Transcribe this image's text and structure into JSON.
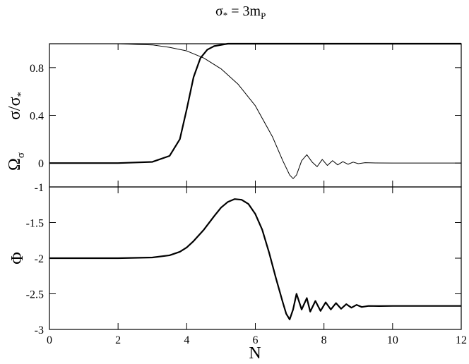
{
  "title": {
    "main": "σ",
    "main_sub": "*",
    "rhs": " = 3m",
    "rhs_sub": "P"
  },
  "chart_data": [
    {
      "type": "line",
      "panel": "top",
      "ylabel_upper": {
        "main": "σ/σ",
        "sub": "*"
      },
      "ylabel_lower": {
        "main": "Ω",
        "sub": "σ"
      },
      "xlim": [
        0,
        12
      ],
      "ylim": [
        -0.2,
        1.0
      ],
      "x_ticks": [
        0,
        2,
        4,
        6,
        8,
        10,
        12
      ],
      "y_ticks": [
        0,
        0.4,
        0.8
      ],
      "y_tick_labels": [
        "0",
        "0.4",
        "0.8"
      ],
      "grid": false,
      "series": [
        {
          "style": "thick",
          "x": [
            0,
            2,
            3,
            3.5,
            3.8,
            4.0,
            4.2,
            4.4,
            4.6,
            4.8,
            5.0,
            5.2,
            5.5,
            6,
            12
          ],
          "y": [
            0,
            0,
            0.01,
            0.06,
            0.2,
            0.45,
            0.72,
            0.88,
            0.95,
            0.98,
            0.99,
            1.0,
            1.0,
            1.0,
            1.0
          ]
        },
        {
          "style": "thin",
          "x": [
            0,
            1,
            2,
            3,
            3.5,
            4.0,
            4.5,
            5.0,
            5.5,
            6.0,
            6.5,
            6.8,
            7.0,
            7.1,
            7.2,
            7.35,
            7.5,
            7.65,
            7.8,
            7.95,
            8.1,
            8.25,
            8.4,
            8.55,
            8.7,
            8.85,
            9.0,
            9.2,
            9.5,
            10,
            12
          ],
          "y": [
            1.0,
            1.0,
            1.0,
            0.99,
            0.97,
            0.94,
            0.88,
            0.79,
            0.66,
            0.48,
            0.22,
            0.02,
            -0.1,
            -0.13,
            -0.1,
            0.02,
            0.07,
            0.01,
            -0.03,
            0.03,
            -0.02,
            0.02,
            -0.015,
            0.012,
            -0.01,
            0.008,
            -0.005,
            0.003,
            0.001,
            0,
            0
          ]
        }
      ]
    },
    {
      "type": "line",
      "panel": "bottom",
      "ylabel": "Φ",
      "xlabel": "N",
      "xlim": [
        0,
        12
      ],
      "ylim": [
        -3,
        -1
      ],
      "x_ticks": [
        0,
        2,
        4,
        6,
        8,
        10,
        12
      ],
      "x_tick_labels": [
        "0",
        "2",
        "4",
        "6",
        "8",
        "10",
        "12"
      ],
      "y_ticks": [
        -3,
        -2.5,
        -2,
        -1.5,
        -1
      ],
      "y_tick_labels": [
        "-3",
        "-2.5",
        "-2",
        "-1.5",
        "-1"
      ],
      "grid": false,
      "series": [
        {
          "style": "thick",
          "x": [
            0,
            2,
            3,
            3.5,
            3.8,
            4.0,
            4.2,
            4.5,
            4.8,
            5.0,
            5.2,
            5.4,
            5.6,
            5.8,
            6.0,
            6.2,
            6.4,
            6.6,
            6.8,
            6.9,
            7.0,
            7.1,
            7.2,
            7.35,
            7.5,
            7.6,
            7.75,
            7.9,
            8.05,
            8.2,
            8.35,
            8.5,
            8.65,
            8.8,
            8.95,
            9.1,
            9.3,
            9.6,
            10,
            12
          ],
          "y": [
            -2.0,
            -2.0,
            -1.99,
            -1.96,
            -1.91,
            -1.85,
            -1.76,
            -1.6,
            -1.41,
            -1.29,
            -1.21,
            -1.17,
            -1.18,
            -1.24,
            -1.38,
            -1.6,
            -1.92,
            -2.28,
            -2.62,
            -2.78,
            -2.86,
            -2.72,
            -2.5,
            -2.72,
            -2.56,
            -2.75,
            -2.6,
            -2.74,
            -2.62,
            -2.72,
            -2.63,
            -2.71,
            -2.645,
            -2.695,
            -2.655,
            -2.685,
            -2.67,
            -2.672,
            -2.67,
            -2.67
          ]
        }
      ]
    }
  ]
}
